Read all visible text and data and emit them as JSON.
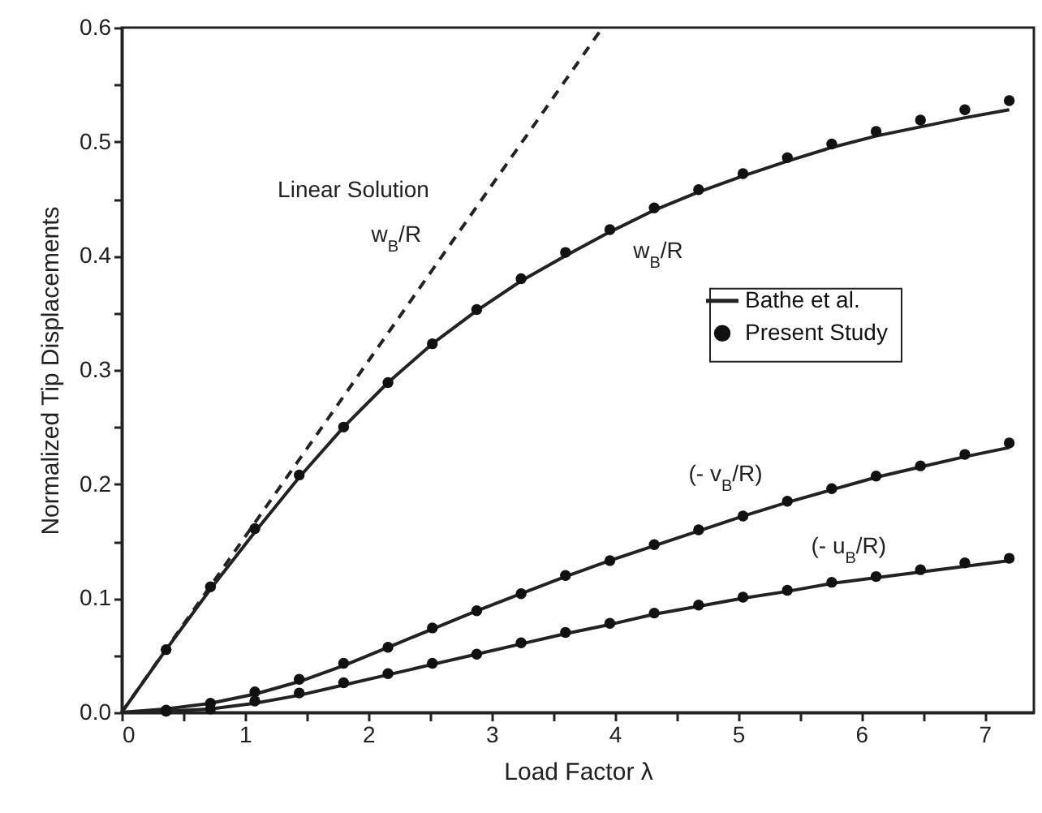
{
  "chart_data": {
    "type": "line",
    "xlabel": "Load Factor λ",
    "ylabel": "Normalized Tip Displacements",
    "xlim": [
      0,
      7.4
    ],
    "ylim": [
      0,
      0.6
    ],
    "xticks": [
      0,
      {
        "value": 0.5,
        "label": null
      },
      1,
      {
        "value": 1.5,
        "label": null
      },
      2,
      {
        "value": 2.5,
        "label": null
      },
      3,
      {
        "value": 3.5,
        "label": null
      },
      4,
      {
        "value": 4.5,
        "label": null
      },
      5,
      {
        "value": 5.5,
        "label": null
      },
      6,
      {
        "value": 6.5,
        "label": null
      },
      7
    ],
    "yticks": [
      {
        "value": 0,
        "label": "0.0"
      },
      {
        "value": 0.05,
        "label": null
      },
      0.1,
      {
        "value": 0.15,
        "label": null
      },
      0.2,
      {
        "value": 0.25,
        "label": null
      },
      0.3,
      {
        "value": 0.35,
        "label": null
      },
      0.4,
      {
        "value": 0.45,
        "label": null
      },
      0.5,
      {
        "value": 0.55,
        "label": null
      },
      0.6
    ],
    "grid": false,
    "legend": "right",
    "series": [
      {
        "name": "Bathe et al.",
        "type": "line",
        "color": "#222222",
        "x": [
          0,
          0.36,
          0.72,
          1.08,
          1.44,
          1.8,
          2.16,
          2.52,
          2.88,
          3.24,
          3.6,
          3.96,
          4.32,
          4.68,
          5.04,
          5.4,
          5.76,
          6.12,
          6.48,
          6.84,
          7.2
        ],
        "values": [
          0,
          0.055,
          0.108,
          0.158,
          0.206,
          0.25,
          0.289,
          0.323,
          0.352,
          0.378,
          0.4,
          0.421,
          0.44,
          0.456,
          0.47,
          0.483,
          0.495,
          0.505,
          0.513,
          0.521,
          0.528
        ]
      },
      {
        "color": "#222222",
        "x": [
          0,
          0.36,
          0.72,
          1.08,
          1.44,
          1.8,
          2.16,
          2.52,
          2.88,
          3.24,
          3.6,
          3.96,
          4.32,
          4.68,
          5.04,
          5.4,
          5.76,
          6.12,
          6.48,
          6.84,
          7.2
        ],
        "values": [
          0,
          0.003,
          0.008,
          0.016,
          0.027,
          0.041,
          0.057,
          0.073,
          0.089,
          0.104,
          0.119,
          0.133,
          0.146,
          0.159,
          0.172,
          0.184,
          0.195,
          0.206,
          0.215,
          0.224,
          0.232
        ]
      },
      {
        "color": "#222222",
        "x": [
          0,
          0.36,
          0.72,
          1.08,
          1.44,
          1.8,
          2.16,
          2.52,
          2.88,
          3.24,
          3.6,
          3.96,
          4.32,
          4.68,
          5.04,
          5.4,
          5.76,
          6.12,
          6.48,
          6.84,
          7.2
        ],
        "values": [
          0,
          0.001,
          0.003,
          0.008,
          0.015,
          0.024,
          0.033,
          0.042,
          0.051,
          0.06,
          0.069,
          0.077,
          0.086,
          0.093,
          0.1,
          0.106,
          0.113,
          0.118,
          0.123,
          0.128,
          0.133
        ]
      },
      {
        "color": "#222222",
        "line_style": "dashed",
        "x": [
          0,
          3.9
        ],
        "values": [
          0,
          0.6
        ]
      },
      {
        "name": "Present Study",
        "type": "scatter",
        "color": "#111111",
        "x": [
          0.36,
          0.72,
          1.08,
          1.44,
          1.8,
          2.16,
          2.52,
          2.88,
          3.24,
          3.6,
          3.96,
          4.32,
          4.68,
          5.04,
          5.4,
          5.76,
          6.12,
          6.48,
          6.84,
          7.2
        ],
        "values": [
          0.055,
          0.11,
          0.161,
          0.208,
          0.25,
          0.289,
          0.323,
          0.353,
          0.38,
          0.403,
          0.423,
          0.442,
          0.458,
          0.472,
          0.486,
          0.498,
          0.509,
          0.519,
          0.528,
          0.536
        ]
      },
      {
        "type": "scatter",
        "color": "#111111",
        "x": [
          0.36,
          0.72,
          1.08,
          1.44,
          1.8,
          2.16,
          2.52,
          2.88,
          3.24,
          3.6,
          3.96,
          4.32,
          4.68,
          5.04,
          5.4,
          5.76,
          6.12,
          6.48,
          6.84,
          7.2
        ],
        "values": [
          0.002,
          0.008,
          0.018,
          0.029,
          0.043,
          0.057,
          0.074,
          0.089,
          0.104,
          0.12,
          0.133,
          0.147,
          0.16,
          0.172,
          0.185,
          0.196,
          0.207,
          0.216,
          0.226,
          0.236
        ]
      },
      {
        "type": "scatter",
        "color": "#111111",
        "x": [
          0.36,
          0.72,
          1.08,
          1.44,
          1.8,
          2.16,
          2.52,
          2.88,
          3.24,
          3.6,
          3.96,
          4.32,
          4.68,
          5.04,
          5.4,
          5.76,
          6.12,
          6.48,
          6.84,
          7.2
        ],
        "values": [
          0.001,
          0.003,
          0.01,
          0.017,
          0.026,
          0.034,
          0.043,
          0.051,
          0.061,
          0.07,
          0.078,
          0.087,
          0.094,
          0.101,
          0.107,
          0.114,
          0.119,
          0.125,
          0.131,
          0.135
        ]
      }
    ],
    "annotations": [
      "Linear Solution",
      "w$_{B}$/R",
      "w$_{B}$/R",
      "(- v$_{B}$/R)",
      "(- u$_{B}$/R)"
    ]
  }
}
